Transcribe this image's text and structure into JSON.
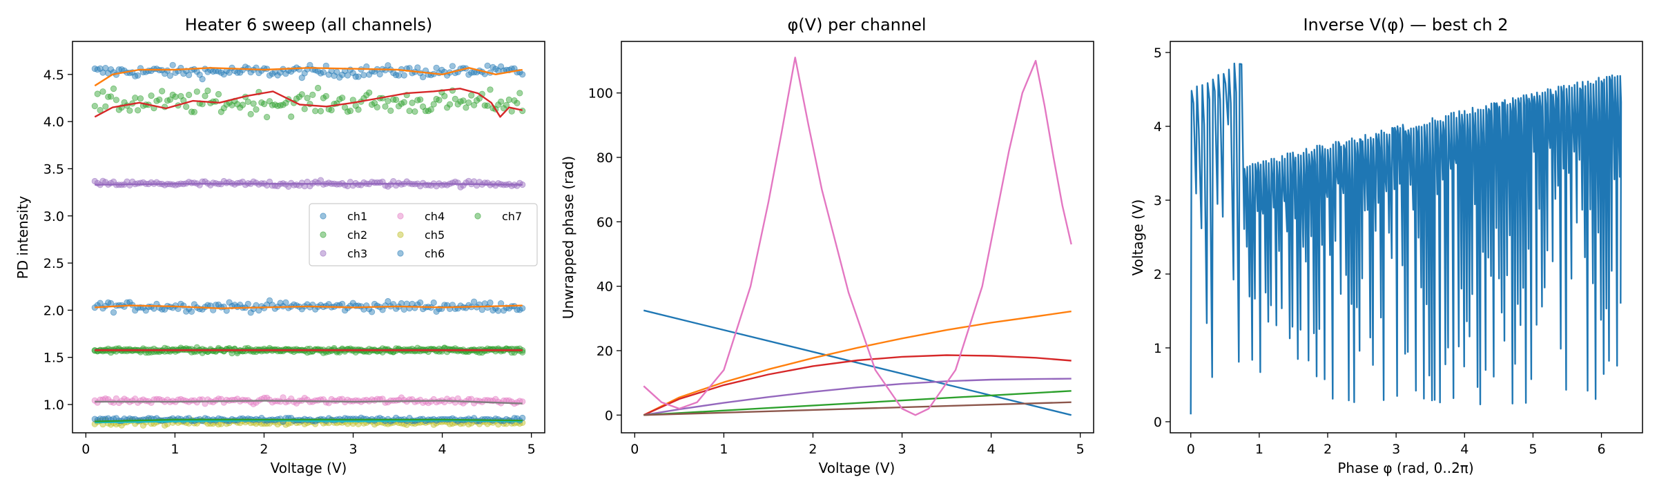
{
  "colors": {
    "blue": "#1f77b4",
    "orange": "#ff7f0e",
    "green": "#2ca02c",
    "red": "#d62728",
    "purple": "#9467bd",
    "brown": "#8c564b",
    "pink": "#e377c2",
    "olive": "#bcbd22",
    "cyan": "#17becf",
    "gray": "#7f7f7f"
  },
  "chart_data": [
    {
      "type": "scatter",
      "title": "Heater 6 sweep (all channels)",
      "xlabel": "Voltage (V)",
      "ylabel": "PD intensity",
      "xlim": [
        -0.15,
        5.15
      ],
      "ylim": [
        0.7,
        4.85
      ],
      "xticks": [
        0,
        1,
        2,
        3,
        4,
        5
      ],
      "yticks": [
        1.0,
        1.5,
        2.0,
        2.5,
        3.0,
        3.5,
        4.0,
        4.5
      ],
      "grid": false,
      "legend": "center-right, 3 columns",
      "scatter_x": {
        "start": 0.1,
        "end": 4.9,
        "count": 160
      },
      "series": [
        {
          "name": "ch1",
          "color": "blue",
          "bands": [
            {
              "center": 4.53,
              "noise": 0.06
            },
            {
              "center": 2.04,
              "noise": 0.05
            }
          ]
        },
        {
          "name": "ch2",
          "color": "green",
          "bands": [
            {
              "center": 4.2,
              "noise": 0.12
            },
            {
              "center": 1.57,
              "noise": 0.025
            }
          ]
        },
        {
          "name": "ch3",
          "color": "purple",
          "bands": [
            {
              "center": 3.34,
              "noise": 0.03
            }
          ]
        },
        {
          "name": "ch4",
          "color": "pink",
          "bands": [
            {
              "center": 1.04,
              "noise": 0.03
            }
          ]
        },
        {
          "name": "ch5",
          "color": "olive",
          "bands": [
            {
              "center": 0.81,
              "noise": 0.025
            }
          ]
        },
        {
          "name": "ch6",
          "color": "blue",
          "bands": [
            {
              "center": 0.84,
              "noise": 0.02
            }
          ]
        },
        {
          "name": "ch7",
          "color": "green",
          "bands": [
            {
              "center": 1.58,
              "noise": 0.02
            }
          ]
        }
      ],
      "smoothed_lines": [
        {
          "color": "orange",
          "points": [
            [
              0.1,
              4.38
            ],
            [
              0.3,
              4.5
            ],
            [
              0.6,
              4.55
            ],
            [
              1.0,
              4.55
            ],
            [
              1.4,
              4.57
            ],
            [
              2.0,
              4.55
            ],
            [
              2.5,
              4.57
            ],
            [
              3.0,
              4.56
            ],
            [
              3.5,
              4.55
            ],
            [
              4.0,
              4.5
            ],
            [
              4.3,
              4.57
            ],
            [
              4.6,
              4.5
            ],
            [
              4.9,
              4.55
            ]
          ]
        },
        {
          "color": "red",
          "points": [
            [
              0.1,
              4.05
            ],
            [
              0.3,
              4.15
            ],
            [
              0.6,
              4.2
            ],
            [
              0.9,
              4.14
            ],
            [
              1.2,
              4.22
            ],
            [
              1.5,
              4.2
            ],
            [
              1.8,
              4.27
            ],
            [
              2.1,
              4.32
            ],
            [
              2.4,
              4.18
            ],
            [
              2.7,
              4.16
            ],
            [
              3.0,
              4.2
            ],
            [
              3.3,
              4.25
            ],
            [
              3.6,
              4.3
            ],
            [
              3.9,
              4.32
            ],
            [
              4.2,
              4.35
            ],
            [
              4.4,
              4.3
            ],
            [
              4.55,
              4.2
            ],
            [
              4.65,
              4.05
            ],
            [
              4.75,
              4.15
            ],
            [
              4.9,
              4.12
            ]
          ]
        },
        {
          "color": "orange",
          "points": [
            [
              0.1,
              2.03
            ],
            [
              0.5,
              2.05
            ],
            [
              1.0,
              2.04
            ],
            [
              1.5,
              2.02
            ],
            [
              2.0,
              2.03
            ],
            [
              2.5,
              2.04
            ],
            [
              3.0,
              2.03
            ],
            [
              3.5,
              2.04
            ],
            [
              4.0,
              2.03
            ],
            [
              4.5,
              2.04
            ],
            [
              4.9,
              2.05
            ]
          ]
        },
        {
          "color": "purple",
          "points": [
            [
              0.1,
              3.33
            ],
            [
              1.0,
              3.34
            ],
            [
              2.0,
              3.34
            ],
            [
              3.0,
              3.34
            ],
            [
              4.0,
              3.34
            ],
            [
              4.9,
              3.33
            ]
          ]
        },
        {
          "color": "brown",
          "points": [
            [
              0.1,
              1.58
            ],
            [
              2.5,
              1.58
            ],
            [
              4.9,
              1.58
            ]
          ]
        },
        {
          "color": "red",
          "points": [
            [
              0.1,
              1.575
            ],
            [
              2.5,
              1.575
            ],
            [
              4.9,
              1.575
            ]
          ]
        },
        {
          "color": "gray",
          "points": [
            [
              0.1,
              1.03
            ],
            [
              1.0,
              1.03
            ],
            [
              2.0,
              1.04
            ],
            [
              3.0,
              1.03
            ],
            [
              4.0,
              1.04
            ],
            [
              4.9,
              1.01
            ]
          ]
        },
        {
          "color": "cyan",
          "points": [
            [
              0.1,
              0.81
            ],
            [
              1.0,
              0.82
            ],
            [
              2.0,
              0.83
            ],
            [
              3.0,
              0.82
            ],
            [
              4.0,
              0.83
            ],
            [
              4.9,
              0.82
            ]
          ]
        },
        {
          "color": "green",
          "points": [
            [
              0.1,
              0.82
            ],
            [
              1.0,
              0.84
            ],
            [
              2.0,
              0.84
            ],
            [
              3.0,
              0.84
            ],
            [
              4.0,
              0.84
            ],
            [
              4.9,
              0.83
            ]
          ]
        }
      ]
    },
    {
      "type": "line",
      "title": "φ(V) per channel",
      "xlabel": "Voltage (V)",
      "ylabel": "Unwrapped phase (rad)",
      "xlim": [
        -0.15,
        5.15
      ],
      "ylim": [
        -5.5,
        116
      ],
      "xticks": [
        0,
        1,
        2,
        3,
        4,
        5
      ],
      "yticks": [
        0,
        20,
        40,
        60,
        80,
        100
      ],
      "grid": false,
      "series": [
        {
          "color": "blue",
          "x": [
            0.1,
            4.9
          ],
          "y": [
            32.5,
            0
          ]
        },
        {
          "color": "orange",
          "x": [
            0.1,
            0.5,
            1.0,
            1.5,
            2.0,
            2.5,
            3.0,
            3.5,
            4.0,
            4.5,
            4.9
          ],
          "y": [
            0,
            5.5,
            10.2,
            14.2,
            17.7,
            20.9,
            23.8,
            26.4,
            28.7,
            30.6,
            32.2
          ]
        },
        {
          "color": "red",
          "x": [
            0.1,
            0.5,
            1.0,
            1.5,
            2.0,
            2.5,
            3.0,
            3.5,
            4.0,
            4.5,
            4.9
          ],
          "y": [
            0,
            5.0,
            9.3,
            12.6,
            15.2,
            17.0,
            18.1,
            18.6,
            18.4,
            17.8,
            16.9
          ]
        },
        {
          "color": "purple",
          "x": [
            0.1,
            0.5,
            1.0,
            1.5,
            2.0,
            2.5,
            3.0,
            3.5,
            4.0,
            4.5,
            4.9
          ],
          "y": [
            0,
            1.8,
            3.8,
            5.6,
            7.2,
            8.6,
            9.7,
            10.5,
            11.0,
            11.2,
            11.3
          ]
        },
        {
          "color": "green",
          "x": [
            0.1,
            4.9
          ],
          "y": [
            0,
            7.5
          ]
        },
        {
          "color": "brown",
          "x": [
            0.1,
            4.9
          ],
          "y": [
            0,
            4.0
          ]
        },
        {
          "color": "pink",
          "x": [
            0.1,
            0.3,
            0.5,
            0.7,
            1.0,
            1.3,
            1.5,
            1.65,
            1.8,
            1.95,
            2.1,
            2.4,
            2.7,
            3.0,
            3.15,
            3.3,
            3.6,
            3.9,
            4.2,
            4.35,
            4.5,
            4.6,
            4.7,
            4.8,
            4.9
          ],
          "y": [
            9,
            4,
            2,
            4,
            14,
            40,
            66,
            88,
            111,
            90,
            70,
            38,
            14,
            2,
            0,
            2,
            14,
            40,
            82,
            100,
            110,
            96,
            80,
            65,
            53
          ]
        }
      ]
    },
    {
      "type": "line",
      "title": "Inverse V(φ) — best ch 2",
      "xlabel": "Phase φ (rad, 0..2π)",
      "ylabel": "Voltage (V)",
      "xlim": [
        -0.3,
        6.6
      ],
      "ylim": [
        -0.15,
        5.15
      ],
      "xticks": [
        0,
        1,
        2,
        3,
        4,
        5,
        6
      ],
      "yticks": [
        0,
        1,
        2,
        3,
        4,
        5
      ],
      "grid": false,
      "series": [
        {
          "color": "blue",
          "segments": [
            {
              "x0": 0.0,
              "x1": 0.78,
              "period": 0.078,
              "top0": 4.45,
              "top1": 4.9,
              "low": 0.4
            },
            {
              "x0": 0.78,
              "x1": 6.28,
              "period": 0.0392,
              "top0": 3.45,
              "top1": 4.7,
              "low": 0.2
            }
          ]
        }
      ]
    }
  ]
}
